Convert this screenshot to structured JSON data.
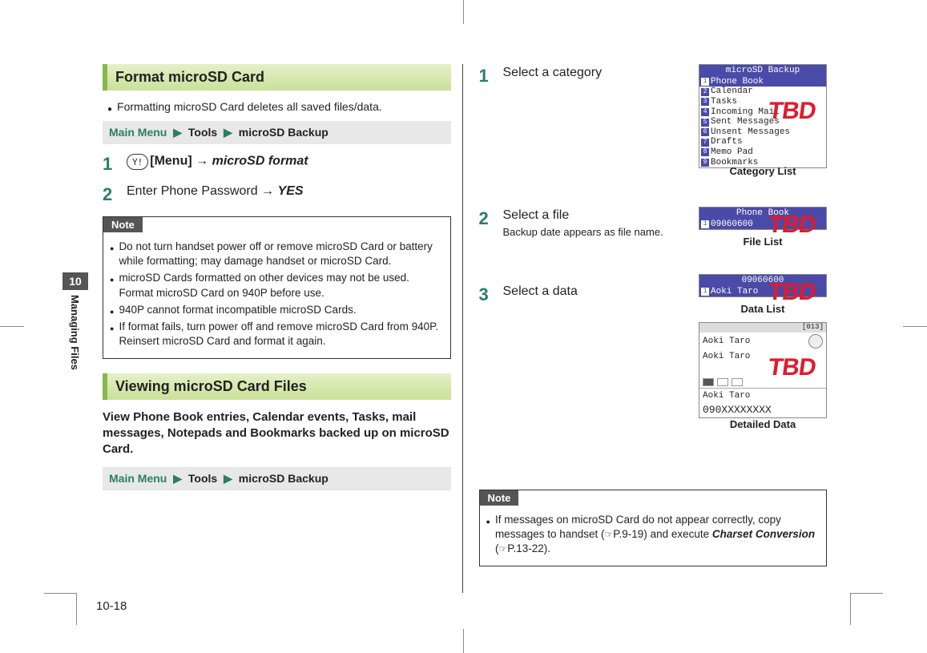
{
  "side_tab": {
    "chapter": "10",
    "label": "Managing Files"
  },
  "page_number": "10-18",
  "left": {
    "section1": {
      "heading": "Format microSD Card",
      "intro": "Formatting microSD Card deletes all saved files/data.",
      "nav": {
        "main": "Main Menu",
        "a": "Tools",
        "b": "microSD Backup"
      },
      "step1": {
        "num": "1",
        "btn": "Y!",
        "btn_label": "[Menu]",
        "arrow": "→",
        "action": "microSD format"
      },
      "step2": {
        "num": "2",
        "text": "Enter Phone Password",
        "arrow": "→",
        "action": "YES"
      },
      "note_title": "Note",
      "notes": [
        "Do not turn handset power off or remove microSD Card or battery while formatting; may damage handset or microSD Card.",
        "microSD Cards formatted on other devices may not be used. Format microSD Card on 940P before use.",
        "940P cannot format incompatible microSD Cards.",
        "If format fails, turn power off and remove microSD Card from 940P. Reinsert microSD Card and format it again."
      ]
    },
    "section2": {
      "heading": "Viewing microSD Card Files",
      "desc": "View Phone Book entries, Calendar events, Tasks, mail messages, Notepads and Bookmarks backed up on microSD Card.",
      "nav": {
        "main": "Main Menu",
        "a": "Tools",
        "b": "microSD Backup"
      }
    }
  },
  "right": {
    "step1": {
      "num": "1",
      "text": "Select a category"
    },
    "step2": {
      "num": "2",
      "text": "Select a file",
      "sub": "Backup date appears as file name."
    },
    "step3": {
      "num": "3",
      "text": "Select a data"
    },
    "shot1": {
      "title": "microSD Backup",
      "rows": [
        {
          "n": "1",
          "t": "Phone Book",
          "sel": true
        },
        {
          "n": "2",
          "t": "Calendar"
        },
        {
          "n": "3",
          "t": "Tasks"
        },
        {
          "n": "4",
          "t": "Incoming Mail"
        },
        {
          "n": "5",
          "t": "Sent Messages"
        },
        {
          "n": "6",
          "t": "Unsent Messages"
        },
        {
          "n": "7",
          "t": "Drafts"
        },
        {
          "n": "8",
          "t": "Memo Pad"
        },
        {
          "n": "9",
          "t": "Bookmarks"
        }
      ],
      "caption": "Category List",
      "tbd": "TBD"
    },
    "shot2": {
      "title": "Phone Book",
      "row": {
        "n": "1",
        "t": "09060600"
      },
      "caption": "File List",
      "tbd": "TBD"
    },
    "shot3": {
      "title": "09060600",
      "row": {
        "n": "1",
        "t": "Aoki Taro"
      },
      "caption": "Data List",
      "tbd": "TBD"
    },
    "shot4": {
      "counter": "[013]",
      "name1": "Aoki Taro",
      "name2": "Aoki Taro",
      "name3": "Aoki Taro",
      "phone": "090XXXXXXXX",
      "caption": "Detailed Data",
      "tbd": "TBD"
    },
    "note_title": "Note",
    "note_text_a": "If messages on microSD Card do not appear correctly, copy messages to handset (",
    "note_ref1": "P.9-19",
    "note_text_b": ") and execute ",
    "note_action": "Charset Conversion",
    "note_text_c": " (",
    "note_ref2": "P.13-22",
    "note_text_d": ")."
  }
}
